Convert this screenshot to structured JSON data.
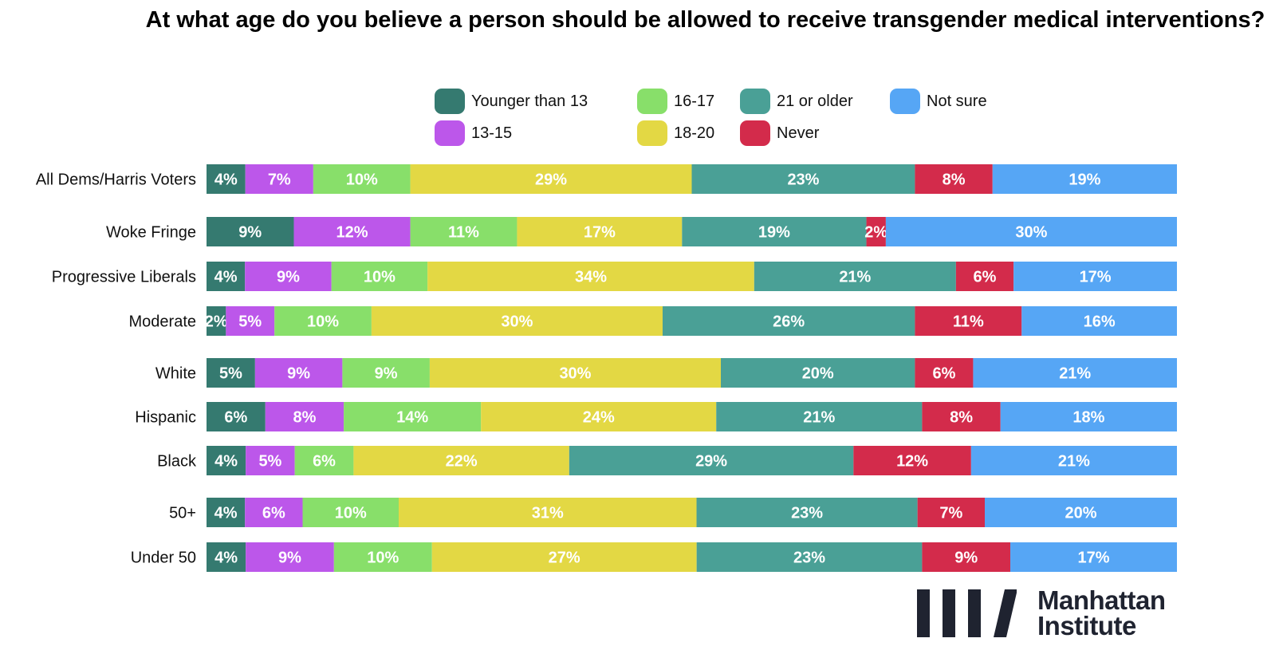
{
  "chart_data": {
    "type": "bar",
    "orientation": "horizontal",
    "stacked": true,
    "normalized_to_100": true,
    "title": "At what age do you believe a person should be allowed to receive transgender medical interventions?",
    "xlabel": "",
    "ylabel": "",
    "grid": false,
    "legend_position": "top",
    "categories": [
      "All Dems/Harris Voters",
      "Woke Fringe",
      "Progressive Liberals",
      "Moderate",
      "White",
      "Hispanic",
      "Black",
      "50+",
      "Under 50"
    ],
    "category_groups": [
      [
        0
      ],
      [
        1,
        2,
        3
      ],
      [
        4,
        5,
        6
      ],
      [
        7,
        8
      ]
    ],
    "series": [
      {
        "name": "Younger than 13",
        "color": "#357a70",
        "values": [
          4,
          9,
          4,
          2,
          5,
          6,
          4,
          4,
          4
        ]
      },
      {
        "name": "13-15",
        "color": "#bc57ea",
        "values": [
          7,
          12,
          9,
          5,
          9,
          8,
          5,
          6,
          9
        ]
      },
      {
        "name": "16-17",
        "color": "#88df6a",
        "values": [
          10,
          11,
          10,
          10,
          9,
          14,
          6,
          10,
          10
        ]
      },
      {
        "name": "18-20",
        "color": "#e3d844",
        "values": [
          29,
          17,
          34,
          30,
          30,
          24,
          22,
          31,
          27
        ]
      },
      {
        "name": "21 or older",
        "color": "#4aa096",
        "values": [
          23,
          19,
          21,
          26,
          20,
          21,
          29,
          23,
          23
        ]
      },
      {
        "name": "Never",
        "color": "#d32b4b",
        "values": [
          8,
          2,
          6,
          11,
          6,
          8,
          12,
          7,
          9
        ]
      },
      {
        "name": "Not sure",
        "color": "#56a6f5",
        "values": [
          19,
          30,
          17,
          16,
          21,
          18,
          21,
          20,
          17
        ]
      }
    ],
    "legend_order": [
      "Younger than 13",
      "16-17",
      "21 or older",
      "Not sure",
      "13-15",
      "18-20",
      "Never"
    ],
    "value_suffix": "%"
  },
  "branding": {
    "logo_text_line1": "Manhattan",
    "logo_text_line2": "Institute",
    "logo_color": "#1f2330"
  }
}
